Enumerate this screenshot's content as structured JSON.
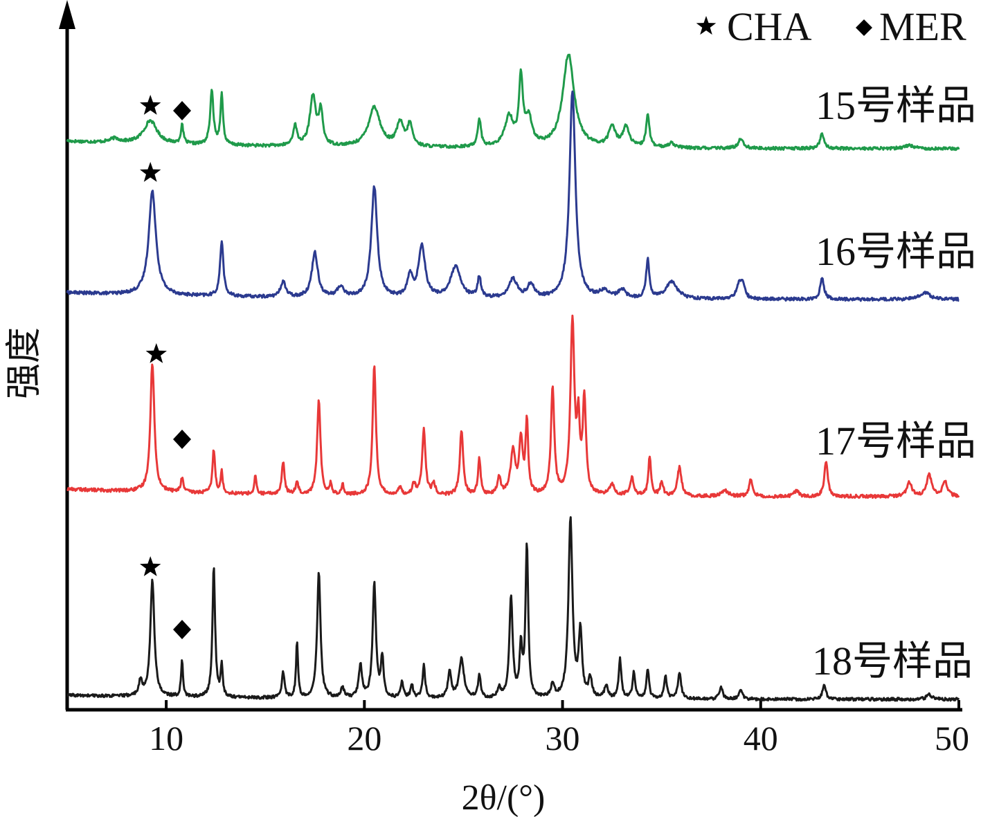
{
  "chart_data": {
    "type": "line",
    "title": "",
    "xlabel": "2θ/(°)",
    "ylabel": "强度",
    "xlim": [
      5,
      50
    ],
    "xticks": [
      10,
      20,
      30,
      40,
      50
    ],
    "grid": false,
    "legend": {
      "placement": "top-right",
      "entries": [
        {
          "symbol": "star",
          "label": "CHA"
        },
        {
          "symbol": "diamond",
          "label": "MER"
        }
      ]
    },
    "series": [
      {
        "name": "15号样品",
        "color": "#1f9a4a",
        "baseline": 0.9,
        "peaks": [
          [
            7.4,
            0.12,
            0.3
          ],
          [
            9.2,
            0.7,
            0.4
          ],
          [
            10.8,
            0.55,
            0.08
          ],
          [
            12.3,
            1.6,
            0.1
          ],
          [
            12.8,
            1.5,
            0.08
          ],
          [
            16.5,
            0.6,
            0.12
          ],
          [
            17.4,
            1.5,
            0.18
          ],
          [
            17.8,
            1.0,
            0.12
          ],
          [
            20.5,
            1.2,
            0.35
          ],
          [
            21.8,
            0.7,
            0.2
          ],
          [
            22.3,
            0.65,
            0.15
          ],
          [
            25.8,
            0.85,
            0.1
          ],
          [
            27.3,
            0.9,
            0.25
          ],
          [
            27.9,
            2.0,
            0.12
          ],
          [
            28.3,
            0.8,
            0.2
          ],
          [
            30.3,
            2.8,
            0.35
          ],
          [
            32.5,
            0.6,
            0.2
          ],
          [
            33.2,
            0.6,
            0.2
          ],
          [
            34.3,
            1.0,
            0.1
          ],
          [
            35.5,
            0.15,
            0.2
          ],
          [
            39.0,
            0.3,
            0.15
          ],
          [
            43.1,
            0.45,
            0.12
          ],
          [
            47.5,
            0.1,
            0.3
          ]
        ]
      },
      {
        "name": "16号样品",
        "color": "#2b3a8f",
        "baseline": 0.8,
        "peaks": [
          [
            9.3,
            3.0,
            0.22
          ],
          [
            12.8,
            1.6,
            0.1
          ],
          [
            15.9,
            0.45,
            0.15
          ],
          [
            17.5,
            1.3,
            0.18
          ],
          [
            18.8,
            0.3,
            0.2
          ],
          [
            20.5,
            3.2,
            0.18
          ],
          [
            22.3,
            0.6,
            0.15
          ],
          [
            22.9,
            1.5,
            0.2
          ],
          [
            24.6,
            0.9,
            0.3
          ],
          [
            25.8,
            0.6,
            0.1
          ],
          [
            27.5,
            0.55,
            0.25
          ],
          [
            28.4,
            0.4,
            0.2
          ],
          [
            30.5,
            6.0,
            0.18
          ],
          [
            32.1,
            0.2,
            0.3
          ],
          [
            33.0,
            0.25,
            0.2
          ],
          [
            34.3,
            1.1,
            0.1
          ],
          [
            35.5,
            0.5,
            0.35
          ],
          [
            38.9,
            0.4,
            0.15
          ],
          [
            39.1,
            0.4,
            0.12
          ],
          [
            43.1,
            0.6,
            0.12
          ],
          [
            48.3,
            0.2,
            0.3
          ]
        ]
      },
      {
        "name": "17号样品",
        "color": "#e83838",
        "baseline": 0.85,
        "peaks": [
          [
            9.3,
            3.6,
            0.12
          ],
          [
            10.8,
            0.4,
            0.08
          ],
          [
            12.4,
            1.2,
            0.08
          ],
          [
            12.8,
            0.6,
            0.06
          ],
          [
            14.5,
            0.5,
            0.06
          ],
          [
            15.9,
            0.9,
            0.08
          ],
          [
            16.6,
            0.35,
            0.08
          ],
          [
            17.7,
            2.6,
            0.1
          ],
          [
            18.3,
            0.3,
            0.06
          ],
          [
            18.9,
            0.3,
            0.06
          ],
          [
            20.5,
            3.6,
            0.1
          ],
          [
            21.8,
            0.2,
            0.1
          ],
          [
            22.5,
            0.3,
            0.1
          ],
          [
            23.0,
            1.8,
            0.1
          ],
          [
            23.5,
            0.3,
            0.1
          ],
          [
            24.9,
            1.8,
            0.1
          ],
          [
            25.8,
            1.0,
            0.08
          ],
          [
            26.8,
            0.5,
            0.1
          ],
          [
            27.5,
            1.2,
            0.15
          ],
          [
            27.9,
            1.5,
            0.1
          ],
          [
            28.2,
            2.0,
            0.08
          ],
          [
            29.5,
            3.0,
            0.1
          ],
          [
            30.5,
            4.8,
            0.12
          ],
          [
            30.8,
            1.8,
            0.08
          ],
          [
            31.1,
            2.6,
            0.1
          ],
          [
            32.5,
            0.3,
            0.15
          ],
          [
            33.5,
            0.5,
            0.12
          ],
          [
            34.4,
            1.1,
            0.08
          ],
          [
            35.0,
            0.35,
            0.1
          ],
          [
            35.9,
            0.8,
            0.12
          ],
          [
            38.2,
            0.15,
            0.2
          ],
          [
            39.5,
            0.5,
            0.1
          ],
          [
            41.8,
            0.15,
            0.15
          ],
          [
            43.3,
            1.0,
            0.1
          ],
          [
            47.5,
            0.4,
            0.15
          ],
          [
            48.5,
            0.6,
            0.15
          ],
          [
            49.3,
            0.4,
            0.15
          ]
        ]
      },
      {
        "name": "18号样品",
        "color": "#1a1a1a",
        "baseline": 0.5,
        "peaks": [
          [
            8.7,
            0.45,
            0.1
          ],
          [
            9.3,
            3.6,
            0.12
          ],
          [
            10.8,
            1.1,
            0.06
          ],
          [
            12.4,
            4.0,
            0.08
          ],
          [
            12.8,
            1.0,
            0.06
          ],
          [
            15.9,
            0.8,
            0.08
          ],
          [
            16.6,
            1.7,
            0.06
          ],
          [
            17.7,
            3.9,
            0.1
          ],
          [
            18.9,
            0.3,
            0.1
          ],
          [
            19.8,
            1.0,
            0.1
          ],
          [
            20.5,
            3.5,
            0.1
          ],
          [
            20.9,
            1.2,
            0.08
          ],
          [
            21.9,
            0.5,
            0.08
          ],
          [
            22.4,
            0.4,
            0.08
          ],
          [
            23.0,
            1.0,
            0.08
          ],
          [
            24.3,
            0.8,
            0.1
          ],
          [
            24.9,
            1.2,
            0.15
          ],
          [
            25.8,
            0.7,
            0.08
          ],
          [
            26.8,
            0.3,
            0.1
          ],
          [
            27.4,
            3.1,
            0.1
          ],
          [
            27.9,
            1.5,
            0.08
          ],
          [
            28.2,
            4.7,
            0.08
          ],
          [
            29.5,
            0.4,
            0.1
          ],
          [
            30.4,
            5.5,
            0.12
          ],
          [
            30.9,
            2.0,
            0.1
          ],
          [
            31.4,
            0.6,
            0.1
          ],
          [
            32.2,
            0.4,
            0.1
          ],
          [
            32.9,
            1.2,
            0.08
          ],
          [
            33.6,
            0.8,
            0.08
          ],
          [
            34.3,
            0.9,
            0.08
          ],
          [
            35.2,
            0.7,
            0.08
          ],
          [
            35.9,
            0.8,
            0.1
          ],
          [
            38.0,
            0.35,
            0.1
          ],
          [
            39.0,
            0.3,
            0.1
          ],
          [
            43.2,
            0.45,
            0.1
          ],
          [
            48.5,
            0.15,
            0.15
          ]
        ]
      }
    ],
    "markers": [
      {
        "symbol": "star",
        "series": "15号样品",
        "x": 9.2
      },
      {
        "symbol": "diamond",
        "series": "15号样品",
        "x": 10.8
      },
      {
        "symbol": "star",
        "series": "16号样品",
        "x": 9.2
      },
      {
        "symbol": "star",
        "series": "17号样品",
        "x": 9.5
      },
      {
        "symbol": "diamond",
        "series": "17号样品",
        "x": 10.8
      },
      {
        "symbol": "star",
        "series": "18号样品",
        "x": 9.2
      },
      {
        "symbol": "diamond",
        "series": "18号样品",
        "x": 10.8
      }
    ]
  }
}
